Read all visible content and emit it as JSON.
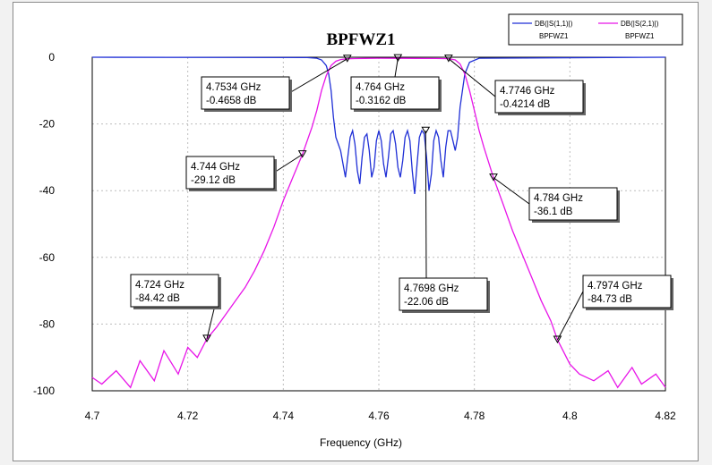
{
  "chart_data": {
    "type": "line",
    "title": "BPFWZ1",
    "xlabel": "Frequency (GHz)",
    "ylabel": "",
    "xlim": [
      4.7,
      4.82
    ],
    "ylim": [
      -100,
      0
    ],
    "xticks": [
      "4.7",
      "4.72",
      "4.74",
      "4.76",
      "4.78",
      "4.8",
      "4.82"
    ],
    "yticks": [
      "0",
      "-20",
      "-40",
      "-60",
      "-80",
      "-100"
    ],
    "grid": true,
    "legend_position": "top-right",
    "series": [
      {
        "name": "DB(|S(1,1)|)",
        "sub": "BPFWZ1",
        "color": "#1f2fd6",
        "x": [
          4.7,
          4.745,
          4.747,
          4.748,
          4.749,
          4.7495,
          4.75,
          4.7505,
          4.751,
          4.7515,
          4.752,
          4.7525,
          4.753,
          4.7535,
          4.754,
          4.7545,
          4.755,
          4.7555,
          4.756,
          4.7565,
          4.757,
          4.7575,
          4.758,
          4.7585,
          4.759,
          4.7595,
          4.76,
          4.7605,
          4.761,
          4.7615,
          4.762,
          4.7625,
          4.763,
          4.7635,
          4.764,
          4.7645,
          4.765,
          4.7655,
          4.766,
          4.7665,
          4.767,
          4.7675,
          4.768,
          4.7685,
          4.769,
          4.7695,
          4.77,
          4.7705,
          4.771,
          4.7715,
          4.772,
          4.7725,
          4.773,
          4.7735,
          4.774,
          4.7745,
          4.775,
          4.7755,
          4.776,
          4.7765,
          4.777,
          4.778,
          4.779,
          4.781,
          4.82
        ],
        "y": [
          0,
          -0.1,
          -0.3,
          -0.8,
          -2.5,
          -5,
          -10,
          -18,
          -24,
          -26,
          -28,
          -32,
          -36,
          -30,
          -24,
          -22,
          -26,
          -34,
          -38,
          -30,
          -24,
          -23,
          -28,
          -36,
          -33,
          -25,
          -22,
          -25,
          -32,
          -36,
          -30,
          -23,
          -22,
          -26,
          -33,
          -36,
          -31,
          -24,
          -22,
          -25,
          -34,
          -41,
          -32,
          -24,
          -22,
          -23,
          -30,
          -40,
          -35,
          -25,
          -22,
          -24,
          -31,
          -36,
          -27,
          -22,
          -22,
          -25,
          -28,
          -24,
          -15,
          -5,
          -1.5,
          -0.3,
          0
        ]
      },
      {
        "name": "DB(|S(2,1)|)",
        "sub": "BPFWZ1",
        "color": "#e815e8",
        "x": [
          4.7,
          4.702,
          4.705,
          4.708,
          4.71,
          4.713,
          4.715,
          4.718,
          4.72,
          4.722,
          4.724,
          4.726,
          4.728,
          4.73,
          4.732,
          4.734,
          4.736,
          4.738,
          4.74,
          4.742,
          4.744,
          4.746,
          4.747,
          4.748,
          4.749,
          4.75,
          4.751,
          4.752,
          4.7534,
          4.755,
          4.757,
          4.76,
          4.764,
          4.768,
          4.772,
          4.7746,
          4.776,
          4.777,
          4.778,
          4.779,
          4.78,
          4.781,
          4.782,
          4.784,
          4.786,
          4.788,
          4.79,
          4.792,
          4.794,
          4.796,
          4.7974,
          4.8,
          4.802,
          4.805,
          4.808,
          4.81,
          4.813,
          4.815,
          4.818,
          4.82
        ],
        "y": [
          -96,
          -98,
          -94,
          -99,
          -91,
          -97,
          -88,
          -95,
          -87,
          -90,
          -84.42,
          -81,
          -77,
          -73,
          -69,
          -64,
          -58,
          -51,
          -43,
          -36,
          -29.12,
          -21,
          -16,
          -10,
          -5.5,
          -2.5,
          -1.2,
          -0.7,
          -0.4658,
          -0.4,
          -0.35,
          -0.3,
          -0.3162,
          -0.35,
          -0.38,
          -0.4214,
          -0.8,
          -2,
          -5,
          -10,
          -16,
          -22,
          -27,
          -36.1,
          -44,
          -52,
          -59,
          -66,
          -73,
          -79,
          -84.73,
          -92,
          -95,
          -97,
          -94,
          -99,
          -93,
          -98,
          -95,
          -99
        ]
      }
    ],
    "annotations": [
      {
        "freq": "4.724 GHz",
        "value": "-84.42 dB",
        "x": 4.724,
        "y": -84.42
      },
      {
        "freq": "4.744 GHz",
        "value": "-29.12 dB",
        "x": 4.744,
        "y": -29.12
      },
      {
        "freq": "4.7534 GHz",
        "value": "-0.4658 dB",
        "x": 4.7534,
        "y": -0.4658
      },
      {
        "freq": "4.764 GHz",
        "value": "-0.3162 dB",
        "x": 4.764,
        "y": -0.3162
      },
      {
        "freq": "4.7746 GHz",
        "value": "-0.4214 dB",
        "x": 4.7746,
        "y": -0.4214
      },
      {
        "freq": "4.7698 GHz",
        "value": "-22.06 dB",
        "x": 4.7698,
        "y": -22.06
      },
      {
        "freq": "4.784 GHz",
        "value": "-36.1 dB",
        "x": 4.784,
        "y": -36.1
      },
      {
        "freq": "4.7974 GHz",
        "value": "-84.73 dB",
        "x": 4.7974,
        "y": -84.73
      }
    ]
  }
}
